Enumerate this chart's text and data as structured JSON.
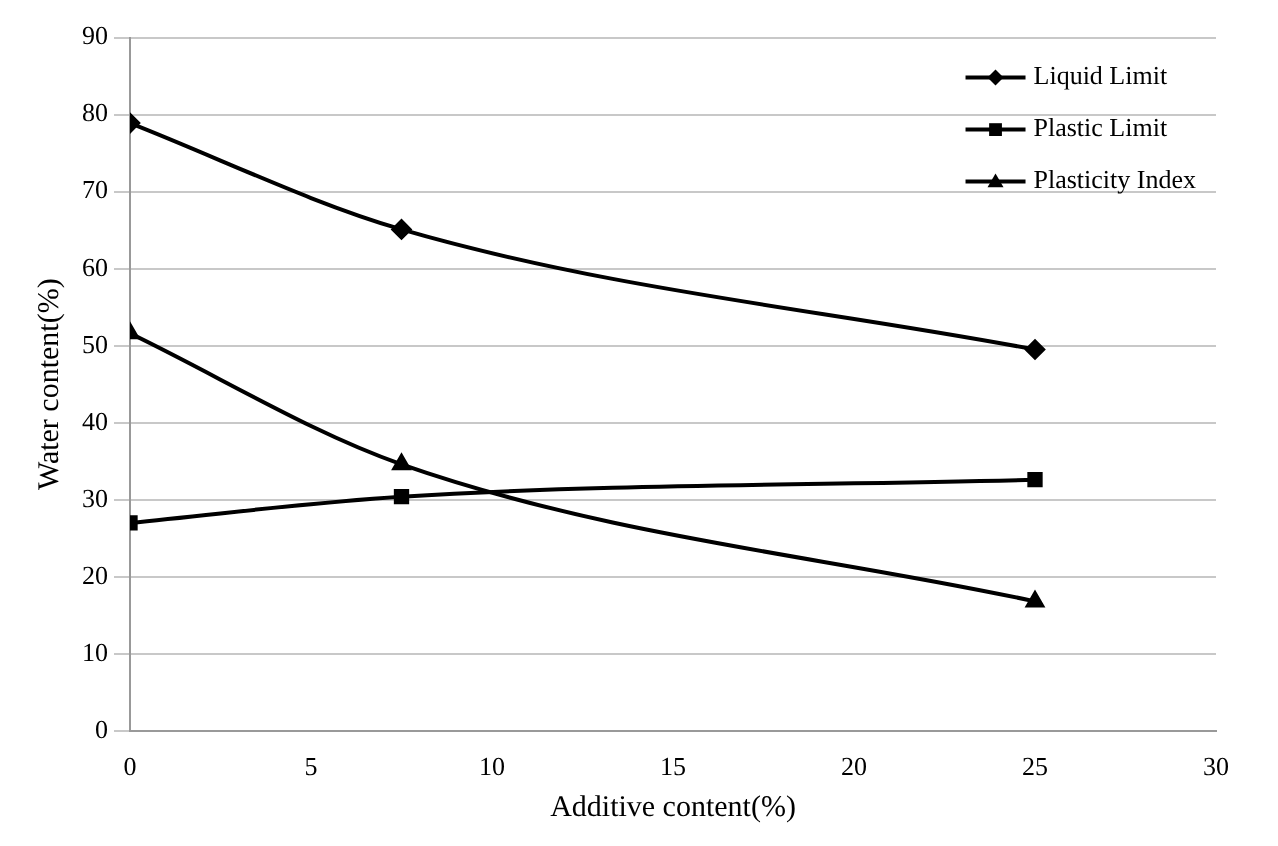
{
  "chart_data": {
    "type": "line",
    "xlabel": "Additive content(%)",
    "ylabel": "Water content(%)",
    "x": [
      0,
      7.5,
      25
    ],
    "series": [
      {
        "name": "Liquid Limit",
        "color": "#000000",
        "marker": "diamond",
        "values": [
          78.9,
          65.1,
          49.5
        ]
      },
      {
        "name": "Plastic Limit",
        "color": "#000000",
        "marker": "square",
        "values": [
          27,
          30.4,
          32.6
        ]
      },
      {
        "name": "Plasticity Index",
        "color": "#000000",
        "marker": "triangle",
        "values": [
          51.6,
          34.6,
          16.8
        ]
      }
    ],
    "xlim": [
      0,
      30
    ],
    "xticks": [
      0,
      5,
      10,
      15,
      20,
      25,
      30
    ],
    "ylim": [
      0,
      90
    ],
    "yticks": [
      0,
      10,
      20,
      30,
      40,
      50,
      60,
      70,
      80,
      90
    ],
    "grid": "y",
    "legend": "top right",
    "line_style": "solid"
  }
}
